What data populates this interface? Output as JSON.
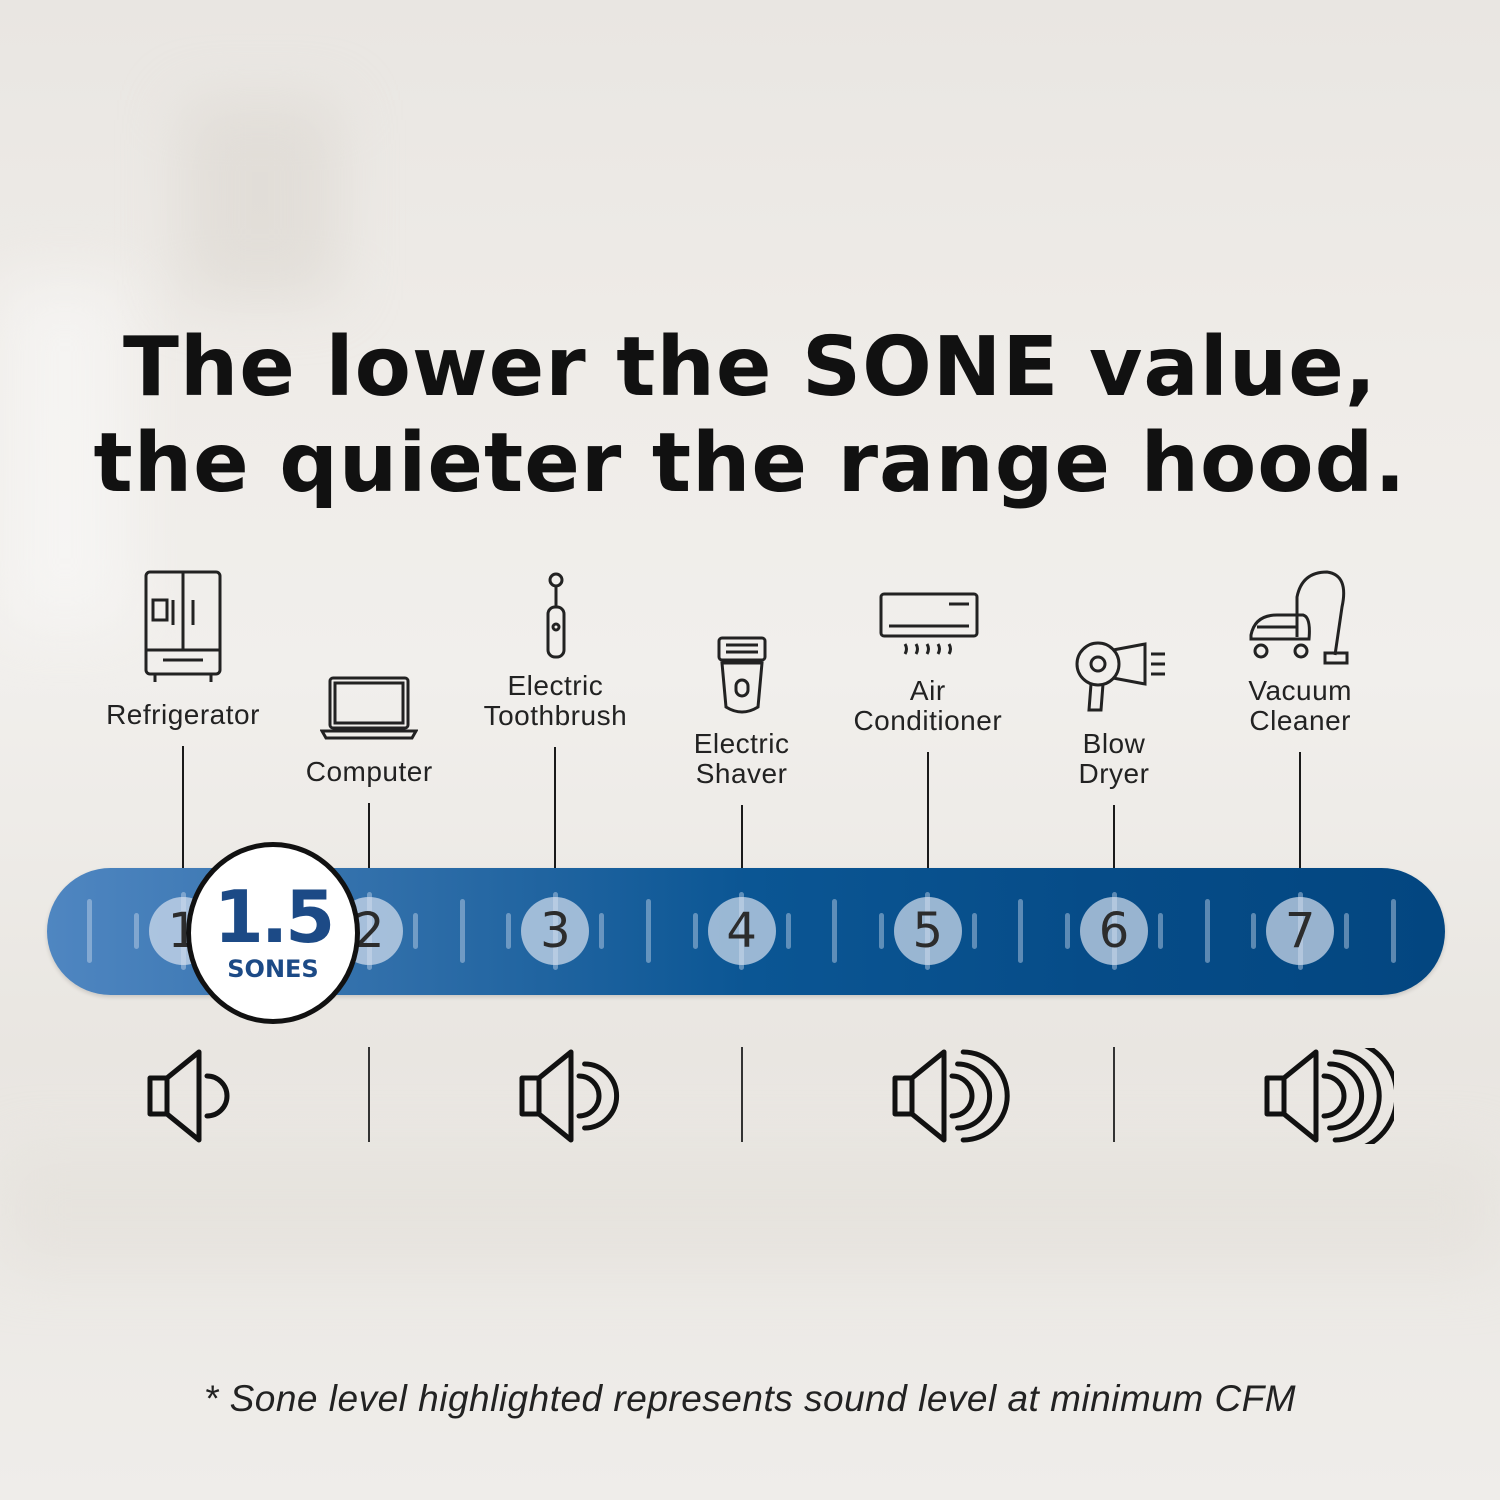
{
  "headline": {
    "line1": "The lower the SONE value,",
    "line2": "the quieter the range hood."
  },
  "scale": {
    "numbers": [
      "1",
      "2",
      "3",
      "4",
      "5",
      "6",
      "7"
    ],
    "highlight": {
      "value": "1.5",
      "unit": "SONES"
    },
    "bar_colors": {
      "start": "#4f86c1",
      "end": "#034680"
    }
  },
  "appliances": [
    {
      "line1": "Refrigerator",
      "line2": "",
      "sone": 1,
      "icon": "refrigerator-icon"
    },
    {
      "line1": "Computer",
      "line2": "",
      "sone": 2,
      "icon": "laptop-icon"
    },
    {
      "line1": "Electric",
      "line2": "Toothbrush",
      "sone": 3,
      "icon": "toothbrush-icon"
    },
    {
      "line1": "Electric",
      "line2": "Shaver",
      "sone": 4,
      "icon": "shaver-icon"
    },
    {
      "line1": "Air",
      "line2": "Conditioner",
      "sone": 5,
      "icon": "air-conditioner-icon"
    },
    {
      "line1": "Blow",
      "line2": "Dryer",
      "sone": 6,
      "icon": "hair-dryer-icon"
    },
    {
      "line1": "Vacuum",
      "line2": "Cleaner",
      "sone": 7,
      "icon": "vacuum-icon"
    }
  ],
  "volume_levels": [
    1,
    2,
    3,
    4
  ],
  "footnote": "* Sone level highlighted represents sound level at minimum CFM"
}
